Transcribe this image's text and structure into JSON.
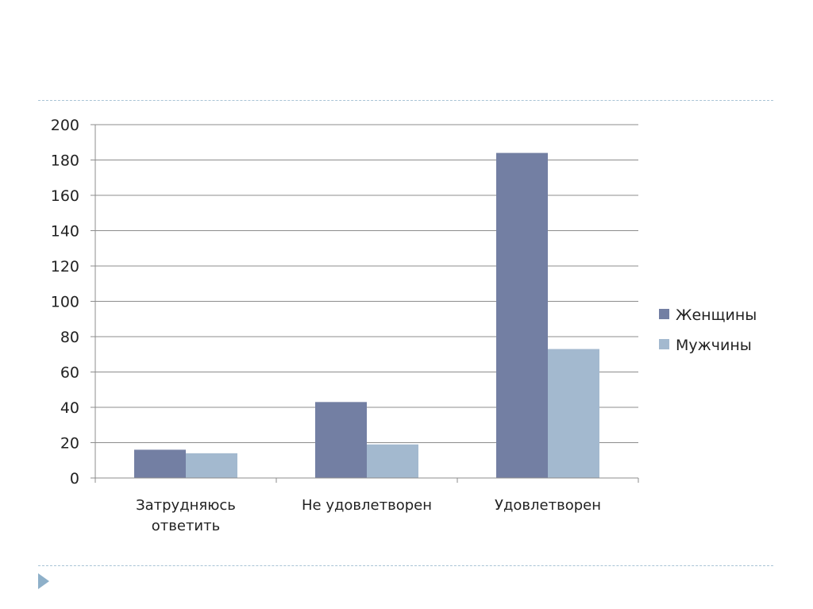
{
  "chart_data": {
    "type": "bar",
    "categories": [
      "Затрудняюсь ответить",
      "Не удовлетворен",
      "Удовлетворен"
    ],
    "category_lines": [
      [
        "Затрудняюсь",
        "ответить"
      ],
      [
        "Не удовлетворен"
      ],
      [
        "Удовлетворен"
      ]
    ],
    "series": [
      {
        "name": "Женщины",
        "values": [
          16,
          43,
          184
        ],
        "color": "#737fa3"
      },
      {
        "name": "Мужчины",
        "values": [
          14,
          19,
          73
        ],
        "color": "#a3b9cf"
      }
    ],
    "y_ticks": [
      "0",
      "20",
      "40",
      "60",
      "80",
      "100",
      "120",
      "140",
      "160",
      "180",
      "200"
    ],
    "ylim": [
      0,
      200
    ],
    "grid": true,
    "legend_position": "right"
  }
}
